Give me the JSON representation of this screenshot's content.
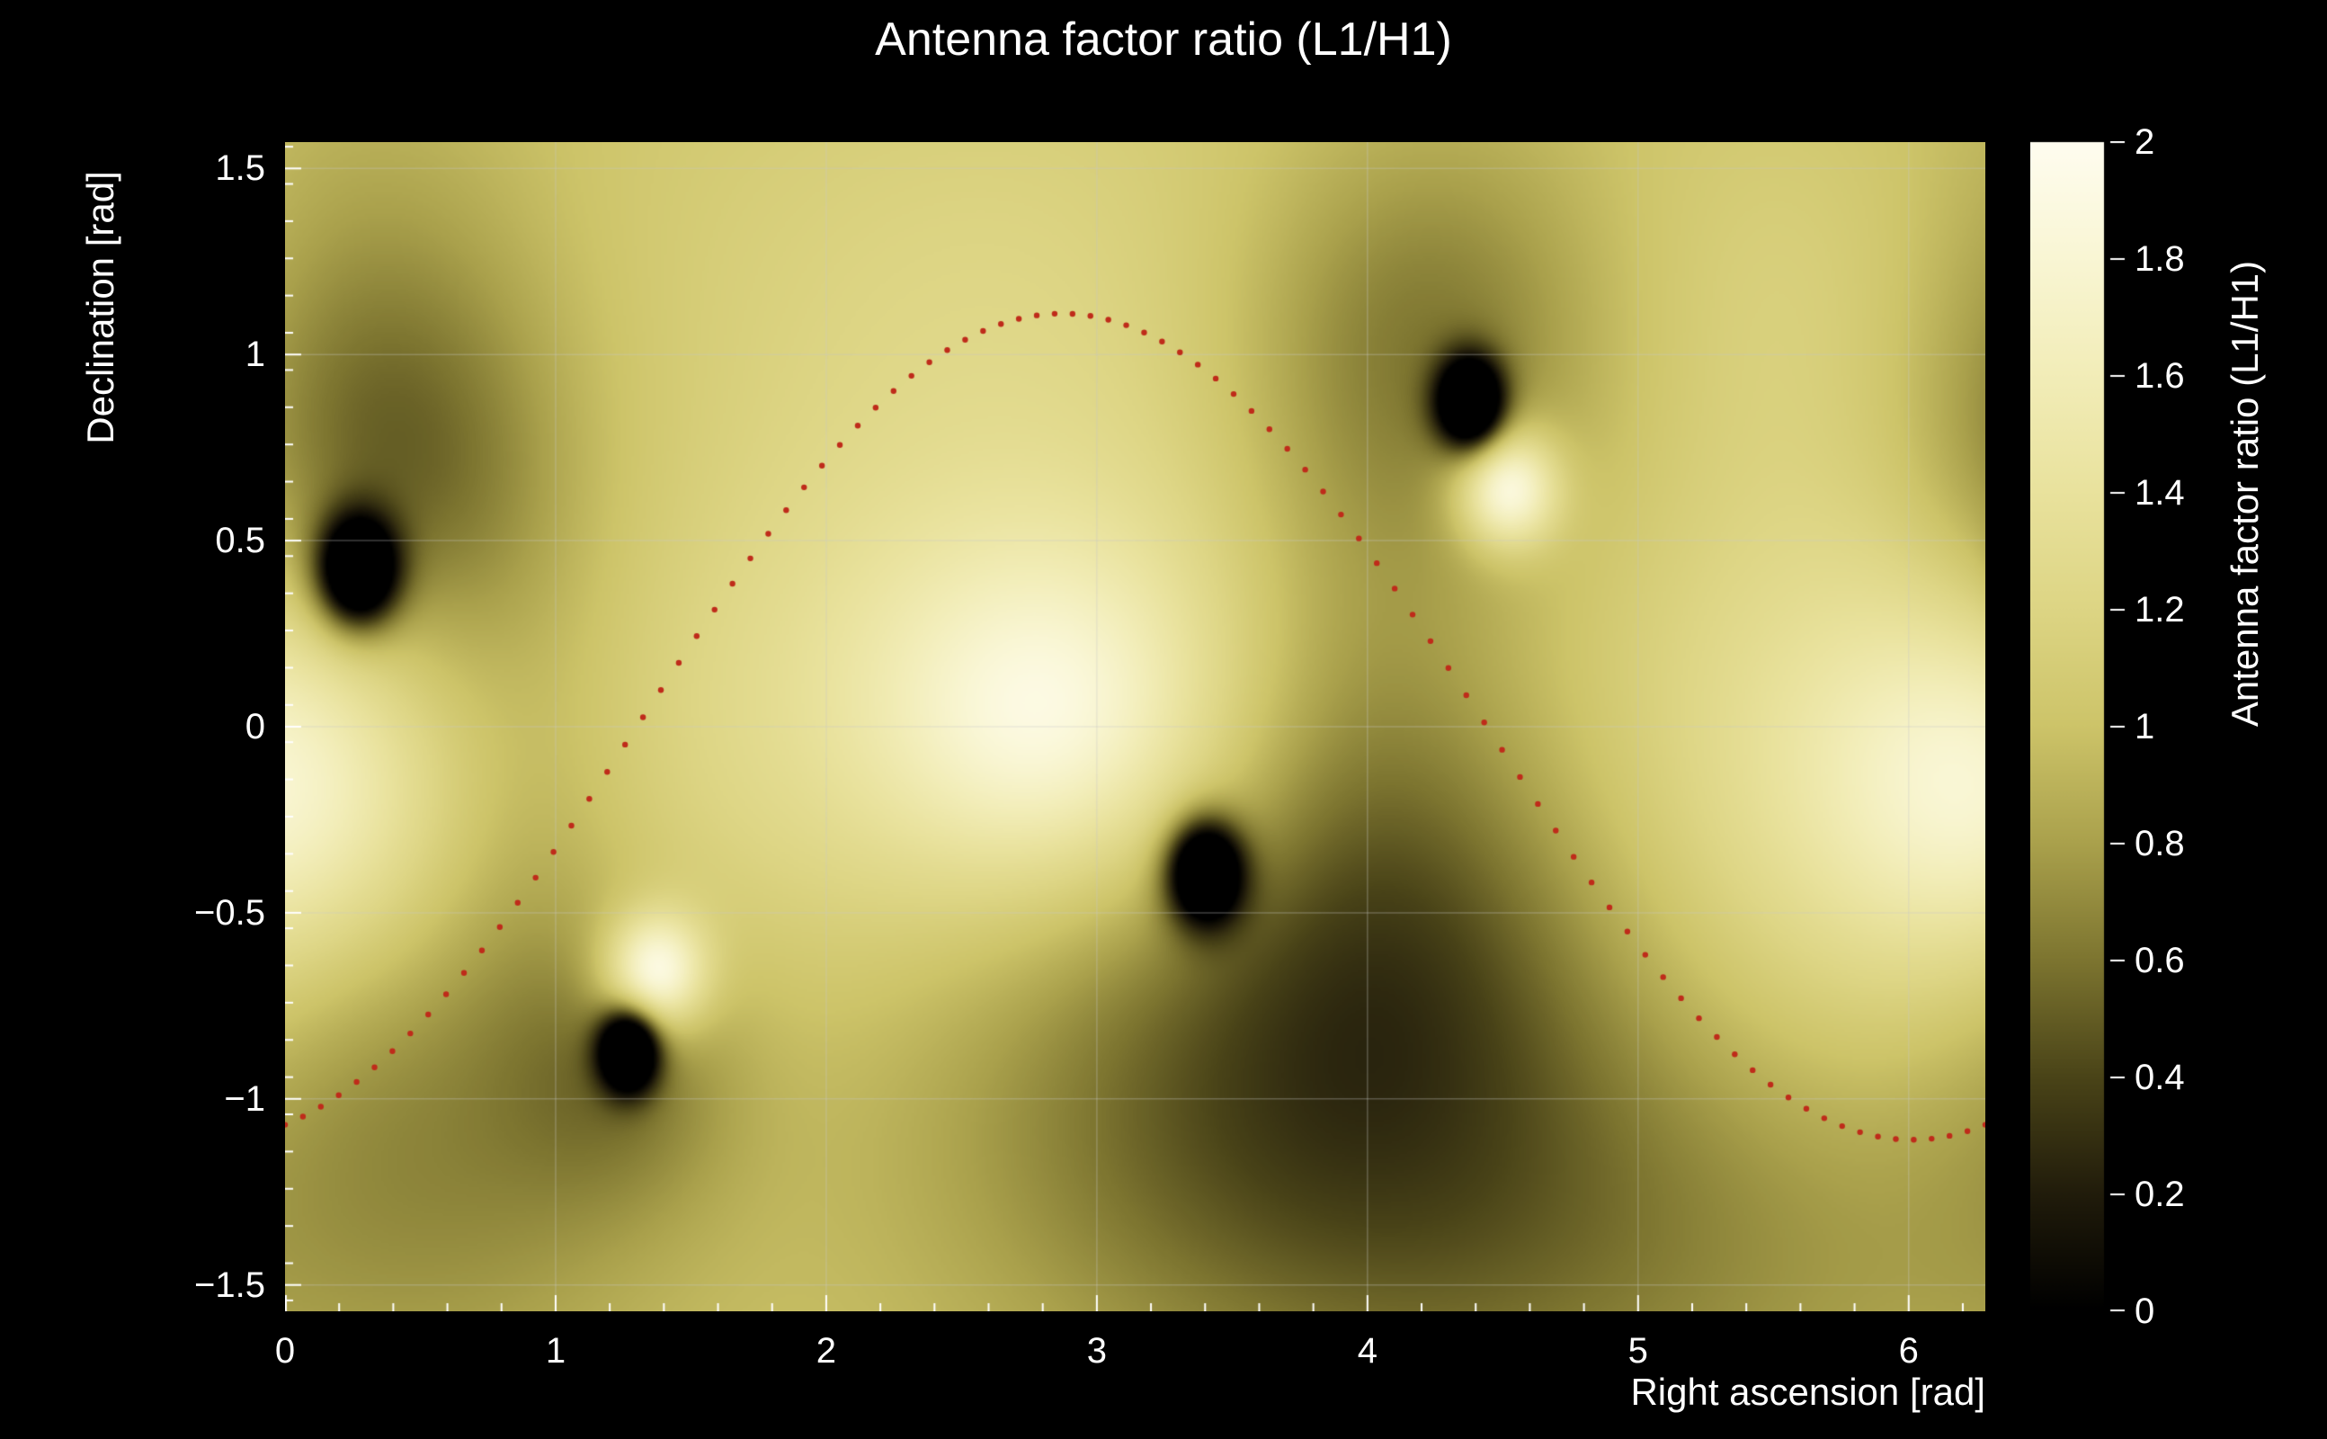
{
  "chart_data": {
    "type": "heatmap",
    "title": "Antenna factor ratio (L1/H1)",
    "xlabel": "Right ascension [rad]",
    "ylabel": "Declination [rad]",
    "colorbar_label": "Antenna factor ratio (L1/H1)",
    "x_range": [
      0,
      6.2832
    ],
    "y_range": [
      -1.5708,
      1.5708
    ],
    "z_range": [
      0,
      2
    ],
    "x_ticks": {
      "values": [
        0,
        1,
        2,
        3,
        4,
        5,
        6
      ],
      "labels": [
        "0",
        "1",
        "2",
        "3",
        "4",
        "5",
        "6"
      ],
      "minor_step": 0.2
    },
    "y_ticks": {
      "values": [
        -1.5,
        -1,
        -0.5,
        0,
        0.5,
        1,
        1.5
      ],
      "labels": [
        "−1.5",
        "−1",
        "−0.5",
        "0",
        "0.5",
        "1",
        "1.5"
      ],
      "minor_step": 0.1
    },
    "z_ticks": {
      "values": [
        0,
        0.2,
        0.4,
        0.6,
        0.8,
        1,
        1.2,
        1.4,
        1.6,
        1.8,
        2
      ],
      "labels": [
        "0",
        "0.2",
        "0.4",
        "0.6",
        "0.8",
        "1",
        "1.2",
        "1.4",
        "1.6",
        "1.8",
        "2"
      ]
    },
    "grid": {
      "show": true,
      "color": "rgba(200,200,200,0.32)"
    },
    "background_color": "#000000",
    "text_color": "#ffffff",
    "colormap_stops": [
      [
        0.0,
        "#000000"
      ],
      [
        0.2,
        "#211c0b"
      ],
      [
        0.4,
        "#4a4418"
      ],
      [
        0.6,
        "#7d7530"
      ],
      [
        0.8,
        "#aaa14c"
      ],
      [
        1.0,
        "#cdc469"
      ],
      [
        1.2,
        "#ddd584"
      ],
      [
        1.4,
        "#e9e29d"
      ],
      [
        1.6,
        "#f2edb8"
      ],
      [
        1.8,
        "#f9f6d4"
      ],
      [
        2.0,
        "#fffdf0"
      ]
    ],
    "field": {
      "base": 1.0,
      "bright_spots": [
        {
          "x": 2.75,
          "y": 0.03,
          "sx": 0.85,
          "sy": 0.5,
          "a": 0.55
        },
        {
          "x": 2.82,
          "y": 0.02,
          "sx": 0.38,
          "sy": 0.28,
          "a": 0.45
        },
        {
          "x": 6.12,
          "y": -0.1,
          "sx": 0.75,
          "sy": 0.55,
          "a": 0.55
        },
        {
          "x": 6.25,
          "y": -0.15,
          "sx": 0.35,
          "sy": 0.3,
          "a": 0.35
        },
        {
          "x": 1.37,
          "y": -0.66,
          "sx": 0.13,
          "sy": 0.11,
          "a": 1.05
        },
        {
          "x": 4.52,
          "y": 0.64,
          "sx": 0.13,
          "sy": 0.11,
          "a": 1.05
        },
        {
          "x": 5.85,
          "y": 1.15,
          "sx": 0.7,
          "sy": 0.4,
          "a": 0.2
        },
        {
          "x": 2.6,
          "y": 1.2,
          "sx": 1.0,
          "sy": 0.5,
          "a": 0.18
        }
      ],
      "dark_spots": [
        {
          "x": 0.27,
          "y": 0.42,
          "sx": 0.1,
          "sy": 0.1,
          "a": 1.7
        },
        {
          "x": 0.4,
          "y": 0.58,
          "sx": 0.45,
          "sy": 0.4,
          "a": 0.5
        },
        {
          "x": 0.22,
          "y": 1.08,
          "sx": 0.52,
          "sy": 0.46,
          "a": 0.32
        },
        {
          "x": 1.27,
          "y": -0.87,
          "sx": 0.075,
          "sy": 0.075,
          "a": 1.7
        },
        {
          "x": 1.27,
          "y": -0.95,
          "sx": 0.3,
          "sy": 0.25,
          "a": 0.3
        },
        {
          "x": 3.4,
          "y": -0.39,
          "sx": 0.095,
          "sy": 0.095,
          "a": 1.7
        },
        {
          "x": 3.45,
          "y": -0.8,
          "sx": 0.8,
          "sy": 0.55,
          "a": 0.45
        },
        {
          "x": 4.3,
          "y": -1.3,
          "sx": 0.9,
          "sy": 0.5,
          "a": 0.28
        },
        {
          "x": 4.38,
          "y": 0.87,
          "sx": 0.085,
          "sy": 0.085,
          "a": 1.7
        },
        {
          "x": 4.22,
          "y": 1.05,
          "sx": 0.5,
          "sy": 0.4,
          "a": 0.42
        },
        {
          "x": 3.95,
          "y": 0.15,
          "sx": 0.4,
          "sy": 0.5,
          "a": 0.25
        },
        {
          "x": 4.2,
          "y": -0.55,
          "sx": 0.5,
          "sy": 0.45,
          "a": 0.28
        },
        {
          "x": 0.9,
          "y": -0.4,
          "sx": 0.3,
          "sy": 0.5,
          "a": 0.26
        },
        {
          "x": 0.3,
          "y": -0.8,
          "sx": 0.4,
          "sy": 0.35,
          "a": 0.22
        },
        {
          "x": 0.6,
          "y": -1.3,
          "sx": 0.6,
          "sy": 0.4,
          "a": 0.2
        },
        {
          "x": 5.3,
          "y": -1.4,
          "sx": 1.0,
          "sy": 0.45,
          "a": 0.16
        }
      ]
    },
    "nulls_radec": [
      [
        0.27,
        0.42
      ],
      [
        1.27,
        -0.87
      ],
      [
        3.4,
        -0.39
      ],
      [
        4.38,
        0.87
      ]
    ],
    "maxima_radec": [
      [
        2.78,
        0.03
      ],
      [
        6.12,
        -0.1
      ],
      [
        1.37,
        -0.66
      ],
      [
        4.52,
        0.64
      ]
    ],
    "overlay_curve": {
      "shape": "sinusoid",
      "description": "dec = A*sin(ra - phase), dotted red track",
      "amplitude_rad": 1.11,
      "phase_rad": 1.3,
      "color": "#bf2b1a",
      "marker": "dot",
      "n_points": 96
    }
  }
}
